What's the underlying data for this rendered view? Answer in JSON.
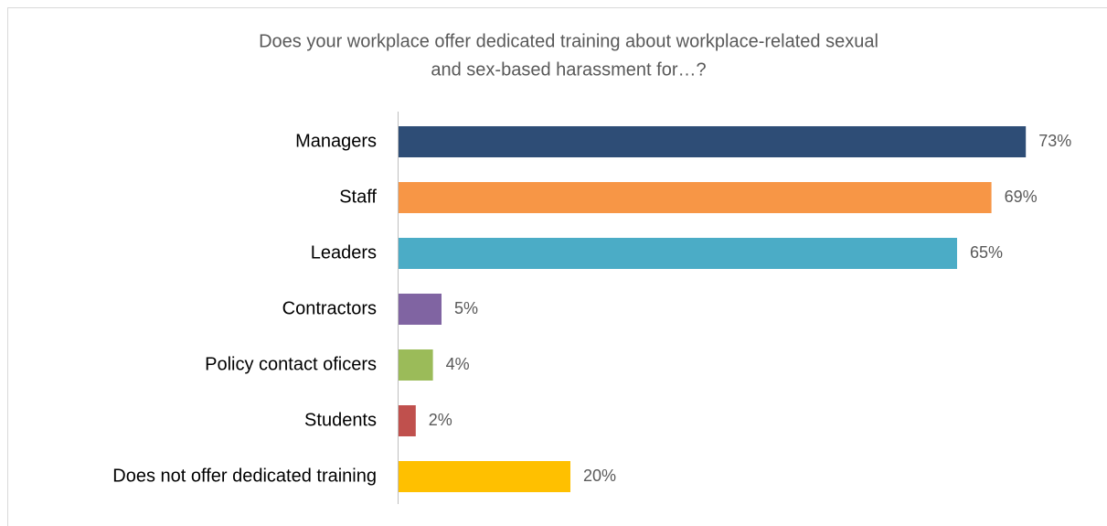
{
  "chart_data": {
    "type": "bar",
    "orientation": "horizontal",
    "title": [
      "Does your workplace offer dedicated training about workplace-related sexual",
      "and sex-based harassment for…?"
    ],
    "categories": [
      "Managers",
      "Staff",
      "Leaders",
      "Contractors",
      "Policy contact oficers",
      "Students",
      "Does not offer dedicated training"
    ],
    "values": [
      73,
      69,
      65,
      5,
      4,
      2,
      20
    ],
    "value_labels": [
      "73%",
      "69%",
      "65%",
      "5%",
      "4%",
      "2%",
      "20%"
    ],
    "colors": [
      "#2e4d76",
      "#f79646",
      "#4bacc6",
      "#8064a2",
      "#9bbb59",
      "#c0504d",
      "#ffc000"
    ]
  }
}
